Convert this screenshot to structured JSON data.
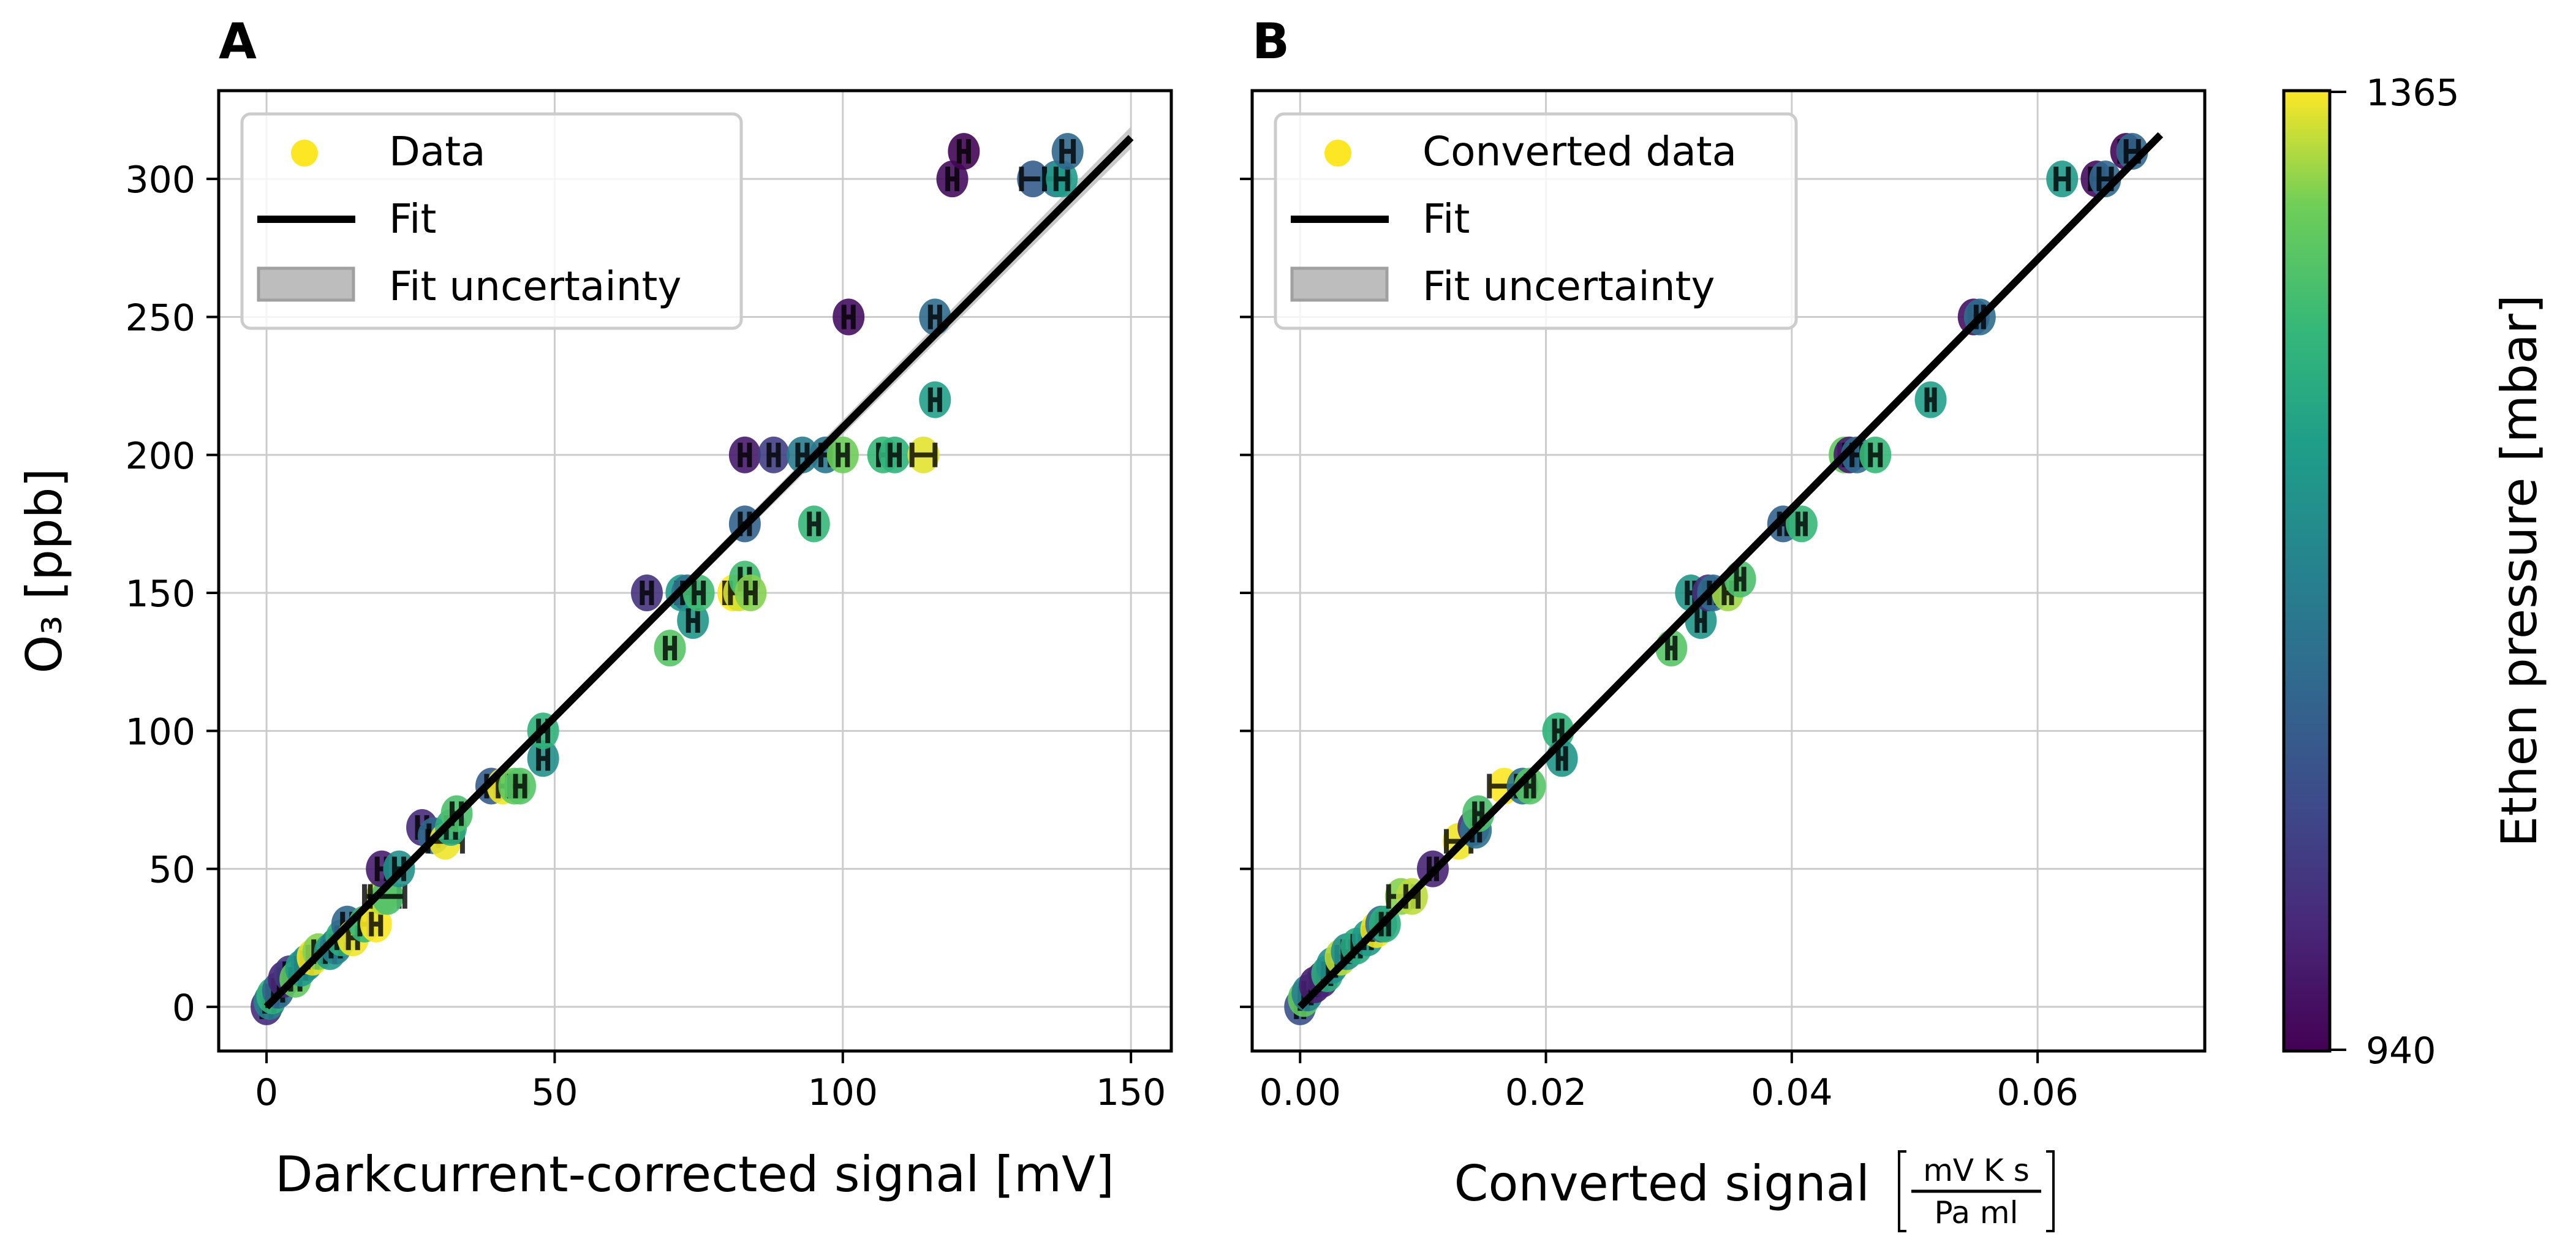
{
  "chart_data": [
    {
      "panel": "A",
      "type": "scatter",
      "title": "A",
      "xlabel": "Darkcurrent-corrected signal [mV]",
      "ylabel": "O₃ [ppb]",
      "xlim": [
        -8.3,
        157
      ],
      "ylim": [
        -16,
        332
      ],
      "xticks": [
        0,
        50,
        100,
        150
      ],
      "xtick_labels": [
        "0",
        "50",
        "100",
        "150"
      ],
      "yticks": [
        0,
        50,
        100,
        150,
        200,
        250,
        300
      ],
      "ytick_labels": [
        "0",
        "50",
        "100",
        "150",
        "200",
        "250",
        "300"
      ],
      "grid": true,
      "legend": {
        "position": "top-left",
        "entries": [
          {
            "label": "Data",
            "kind": "marker",
            "color": "#fde725"
          },
          {
            "label": "Fit",
            "kind": "line",
            "color": "#000000"
          },
          {
            "label": "Fit uncertainty",
            "kind": "patch",
            "color": "#bdbdbd"
          }
        ]
      },
      "fit": {
        "x": [
          0,
          150
        ],
        "y": [
          0,
          315
        ],
        "band_halfwidth_at_end": 4
      },
      "points": [
        {
          "x": 0,
          "y": 0,
          "xerr": 0.8,
          "p": 1000
        },
        {
          "x": 0.5,
          "y": 2,
          "xerr": 0.8,
          "p": 1150
        },
        {
          "x": 1,
          "y": 4,
          "xerr": 0.8,
          "p": 1250
        },
        {
          "x": 2,
          "y": 6,
          "xerr": 0.8,
          "p": 1100
        },
        {
          "x": 3,
          "y": 10,
          "xerr": 0.8,
          "p": 990
        },
        {
          "x": 4,
          "y": 12,
          "xerr": 0.8,
          "p": 1020
        },
        {
          "x": 5,
          "y": 10,
          "xerr": 0.8,
          "p": 1300
        },
        {
          "x": 6,
          "y": 14,
          "xerr": 0.8,
          "p": 1200
        },
        {
          "x": 7,
          "y": 16,
          "xerr": 0.8,
          "p": 1180
        },
        {
          "x": 8,
          "y": 18,
          "xerr": 0.8,
          "p": 1360
        },
        {
          "x": 9,
          "y": 20,
          "xerr": 0.8,
          "p": 1320
        },
        {
          "x": 11,
          "y": 20,
          "xerr": 0.8,
          "p": 1200
        },
        {
          "x": 12,
          "y": 22,
          "xerr": 0.8,
          "p": 1150
        },
        {
          "x": 13,
          "y": 25,
          "xerr": 0.8,
          "p": 1240
        },
        {
          "x": 14,
          "y": 30,
          "xerr": 0.8,
          "p": 1100
        },
        {
          "x": 15,
          "y": 25,
          "xerr": 0.8,
          "p": 1360
        },
        {
          "x": 17,
          "y": 30,
          "xerr": 0.8,
          "p": 1260
        },
        {
          "x": 19,
          "y": 30,
          "xerr": 0.8,
          "p": 1365
        },
        {
          "x": 20,
          "y": 40,
          "xerr": 3,
          "p": 1340
        },
        {
          "x": 21,
          "y": 40,
          "xerr": 3,
          "p": 1280
        },
        {
          "x": 20,
          "y": 50,
          "xerr": 0.8,
          "p": 980
        },
        {
          "x": 23,
          "y": 50,
          "xerr": 0.8,
          "p": 1180
        },
        {
          "x": 27,
          "y": 65,
          "xerr": 0.8,
          "p": 1000
        },
        {
          "x": 29,
          "y": 62,
          "xerr": 0.8,
          "p": 1100
        },
        {
          "x": 31,
          "y": 60,
          "xerr": 3,
          "p": 1360
        },
        {
          "x": 32,
          "y": 65,
          "xerr": 0.8,
          "p": 1240
        },
        {
          "x": 33,
          "y": 70,
          "xerr": 0.8,
          "p": 1280
        },
        {
          "x": 39,
          "y": 80,
          "xerr": 0.8,
          "p": 1080
        },
        {
          "x": 41,
          "y": 80,
          "xerr": 0.8,
          "p": 1360
        },
        {
          "x": 43,
          "y": 80,
          "xerr": 0.8,
          "p": 1300
        },
        {
          "x": 44,
          "y": 80,
          "xerr": 0.8,
          "p": 1290
        },
        {
          "x": 48,
          "y": 90,
          "xerr": 0.8,
          "p": 1180
        },
        {
          "x": 48,
          "y": 100,
          "xerr": 0.8,
          "p": 1250
        },
        {
          "x": 66,
          "y": 150,
          "xerr": 0.8,
          "p": 1010
        },
        {
          "x": 70,
          "y": 130,
          "xerr": 0.8,
          "p": 1290
        },
        {
          "x": 72,
          "y": 150,
          "xerr": 0.8,
          "p": 1200
        },
        {
          "x": 73,
          "y": 150,
          "xerr": 0.8,
          "p": 1120
        },
        {
          "x": 74,
          "y": 140,
          "xerr": 0.8,
          "p": 1190
        },
        {
          "x": 75,
          "y": 150,
          "xerr": 0.8,
          "p": 1270
        },
        {
          "x": 81,
          "y": 150,
          "xerr": 1.5,
          "p": 1365
        },
        {
          "x": 82,
          "y": 150,
          "xerr": 1.5,
          "p": 1350
        },
        {
          "x": 83,
          "y": 155,
          "xerr": 0.8,
          "p": 1270
        },
        {
          "x": 84,
          "y": 150,
          "xerr": 0.8,
          "p": 1320
        },
        {
          "x": 83,
          "y": 175,
          "xerr": 0.8,
          "p": 1090
        },
        {
          "x": 95,
          "y": 175,
          "xerr": 0.8,
          "p": 1260
        },
        {
          "x": 83,
          "y": 200,
          "xerr": 0.8,
          "p": 975
        },
        {
          "x": 88,
          "y": 200,
          "xerr": 0.8,
          "p": 1030
        },
        {
          "x": 93,
          "y": 200,
          "xerr": 0.8,
          "p": 1140
        },
        {
          "x": 97,
          "y": 200,
          "xerr": 0.8,
          "p": 1130
        },
        {
          "x": 100,
          "y": 200,
          "xerr": 0.8,
          "p": 1310
        },
        {
          "x": 107,
          "y": 200,
          "xerr": 0.8,
          "p": 1260
        },
        {
          "x": 109,
          "y": 200,
          "xerr": 0.8,
          "p": 1250
        },
        {
          "x": 114,
          "y": 200,
          "xerr": 2,
          "p": 1355
        },
        {
          "x": 116,
          "y": 220,
          "xerr": 0.8,
          "p": 1210
        },
        {
          "x": 101,
          "y": 250,
          "xerr": 0.8,
          "p": 960
        },
        {
          "x": 116,
          "y": 250,
          "xerr": 0.8,
          "p": 1110
        },
        {
          "x": 119,
          "y": 300,
          "xerr": 0.8,
          "p": 955
        },
        {
          "x": 121,
          "y": 310,
          "xerr": 0.8,
          "p": 945
        },
        {
          "x": 133,
          "y": 300,
          "xerr": 2,
          "p": 1080
        },
        {
          "x": 137,
          "y": 300,
          "xerr": 2,
          "p": 1130
        },
        {
          "x": 138,
          "y": 300,
          "xerr": 1,
          "p": 1200
        },
        {
          "x": 139,
          "y": 310,
          "xerr": 1,
          "p": 1100
        }
      ]
    },
    {
      "panel": "B",
      "type": "scatter",
      "title": "B",
      "xlabel": "Converted signal",
      "xlabel_unit_numerator": "mV K s",
      "xlabel_unit_denominator": "Pa ml",
      "ylabel": "",
      "xlim": [
        -0.0039,
        0.0736
      ],
      "ylim": [
        -16,
        332
      ],
      "xticks": [
        0.0,
        0.02,
        0.04,
        0.06
      ],
      "xtick_labels": [
        "0.00",
        "0.02",
        "0.04",
        "0.06"
      ],
      "yticks": [
        0,
        50,
        100,
        150,
        200,
        250,
        300
      ],
      "grid": true,
      "legend": {
        "position": "top-left",
        "entries": [
          {
            "label": "Converted data",
            "kind": "marker",
            "color": "#fde725"
          },
          {
            "label": "Fit",
            "kind": "line",
            "color": "#000000"
          },
          {
            "label": "Fit uncertainty",
            "kind": "patch",
            "color": "#bdbdbd"
          }
        ]
      },
      "fit": {
        "x": [
          0,
          0.07
        ],
        "y": [
          0,
          316
        ],
        "band_halfwidth_at_end": 1
      },
      "points": [
        {
          "x": 0.0,
          "y": 0,
          "xerr": 0.0003,
          "p": 1060
        },
        {
          "x": 0.0003,
          "y": 3,
          "xerr": 0.0003,
          "p": 1300
        },
        {
          "x": 0.0006,
          "y": 5,
          "xerr": 0.0003,
          "p": 1150
        },
        {
          "x": 0.0012,
          "y": 8,
          "xerr": 0.0003,
          "p": 980
        },
        {
          "x": 0.0018,
          "y": 10,
          "xerr": 0.0003,
          "p": 990
        },
        {
          "x": 0.0022,
          "y": 12,
          "xerr": 0.0003,
          "p": 1240
        },
        {
          "x": 0.0026,
          "y": 15,
          "xerr": 0.0003,
          "p": 1180
        },
        {
          "x": 0.0033,
          "y": 18,
          "xerr": 0.0003,
          "p": 1340
        },
        {
          "x": 0.0038,
          "y": 20,
          "xerr": 0.0003,
          "p": 1180
        },
        {
          "x": 0.0046,
          "y": 22,
          "xerr": 0.0003,
          "p": 1230
        },
        {
          "x": 0.0055,
          "y": 25,
          "xerr": 0.0003,
          "p": 1200
        },
        {
          "x": 0.0062,
          "y": 28,
          "xerr": 0.0003,
          "p": 1360
        },
        {
          "x": 0.0066,
          "y": 30,
          "xerr": 0.0003,
          "p": 1110
        },
        {
          "x": 0.0069,
          "y": 30,
          "xerr": 0.0003,
          "p": 1240
        },
        {
          "x": 0.0082,
          "y": 40,
          "xerr": 0.001,
          "p": 1320
        },
        {
          "x": 0.0091,
          "y": 40,
          "xerr": 0.0005,
          "p": 1340
        },
        {
          "x": 0.0108,
          "y": 50,
          "xerr": 0.0003,
          "p": 990
        },
        {
          "x": 0.0129,
          "y": 60,
          "xerr": 0.001,
          "p": 1360
        },
        {
          "x": 0.0141,
          "y": 65,
          "xerr": 0.0003,
          "p": 1000
        },
        {
          "x": 0.0143,
          "y": 64,
          "xerr": 0.0003,
          "p": 1120
        },
        {
          "x": 0.0145,
          "y": 70,
          "xerr": 0.0003,
          "p": 1280
        },
        {
          "x": 0.0166,
          "y": 80,
          "xerr": 0.0012,
          "p": 1365
        },
        {
          "x": 0.0181,
          "y": 80,
          "xerr": 0.0005,
          "p": 1120
        },
        {
          "x": 0.0187,
          "y": 80,
          "xerr": 0.0003,
          "p": 1290
        },
        {
          "x": 0.021,
          "y": 100,
          "xerr": 0.0003,
          "p": 1250
        },
        {
          "x": 0.0213,
          "y": 90,
          "xerr": 0.0003,
          "p": 1190
        },
        {
          "x": 0.0302,
          "y": 130,
          "xerr": 0.0003,
          "p": 1290
        },
        {
          "x": 0.0318,
          "y": 150,
          "xerr": 0.0003,
          "p": 1190
        },
        {
          "x": 0.0326,
          "y": 140,
          "xerr": 0.0003,
          "p": 1190
        },
        {
          "x": 0.0332,
          "y": 150,
          "xerr": 0.0003,
          "p": 1010
        },
        {
          "x": 0.0336,
          "y": 150,
          "xerr": 0.0003,
          "p": 1110
        },
        {
          "x": 0.0348,
          "y": 150,
          "xerr": 0.0003,
          "p": 1330
        },
        {
          "x": 0.0358,
          "y": 155,
          "xerr": 0.0003,
          "p": 1280
        },
        {
          "x": 0.0393,
          "y": 175,
          "xerr": 0.0003,
          "p": 1090
        },
        {
          "x": 0.0408,
          "y": 175,
          "xerr": 0.0003,
          "p": 1260
        },
        {
          "x": 0.0443,
          "y": 200,
          "xerr": 0.0004,
          "p": 1300
        },
        {
          "x": 0.0447,
          "y": 200,
          "xerr": 0.0004,
          "p": 975
        },
        {
          "x": 0.0453,
          "y": 200,
          "xerr": 0.0004,
          "p": 1110
        },
        {
          "x": 0.0468,
          "y": 200,
          "xerr": 0.0004,
          "p": 1260
        },
        {
          "x": 0.0513,
          "y": 220,
          "xerr": 0.0003,
          "p": 1210
        },
        {
          "x": 0.0548,
          "y": 250,
          "xerr": 0.0003,
          "p": 960
        },
        {
          "x": 0.0553,
          "y": 250,
          "xerr": 0.0003,
          "p": 1110
        },
        {
          "x": 0.062,
          "y": 300,
          "xerr": 0.0005,
          "p": 1200
        },
        {
          "x": 0.0648,
          "y": 300,
          "xerr": 0.0005,
          "p": 955
        },
        {
          "x": 0.0655,
          "y": 300,
          "xerr": 0.0005,
          "p": 1100
        },
        {
          "x": 0.0672,
          "y": 310,
          "xerr": 0.0005,
          "p": 945
        },
        {
          "x": 0.0677,
          "y": 310,
          "xerr": 0.0005,
          "p": 1100
        }
      ]
    }
  ],
  "colorbar": {
    "label": "Ethen pressure [mbar]",
    "min": 940,
    "max": 1365,
    "tick_labels": [
      "1365",
      "940"
    ],
    "colormap": "viridis"
  }
}
